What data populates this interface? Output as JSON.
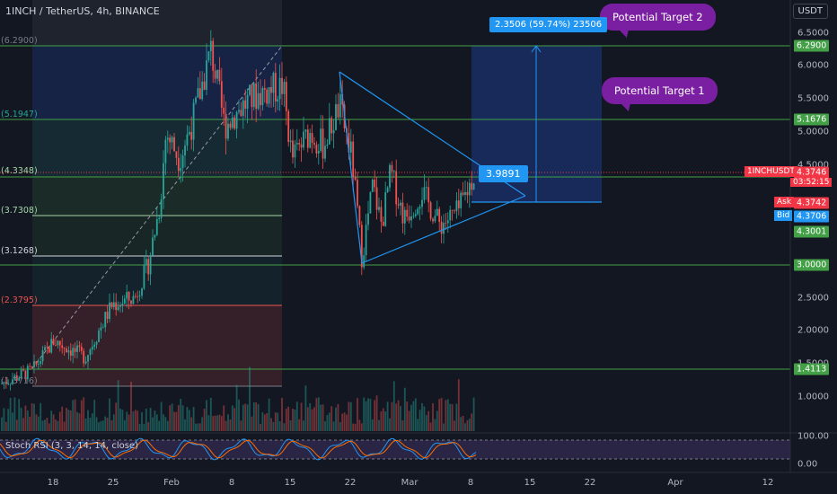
{
  "header": {
    "title": "1INCH / TetherUS, 4h, BINANCE",
    "currency": "USDT"
  },
  "price_axis": {
    "ticks": [
      "6.5000",
      "6.0000",
      "5.5000",
      "5.0000",
      "4.5000",
      "2.5000",
      "2.0000",
      "1.5000",
      "1.0000"
    ],
    "badges": [
      {
        "value": "6.2900",
        "color": "#43a047"
      },
      {
        "value": "5.1676",
        "color": "#43a047"
      },
      {
        "value": "4.3746",
        "color": "#f23645"
      },
      {
        "value": "4.3742",
        "color": "#f23645"
      },
      {
        "value": "4.3706",
        "color": "#2196f3"
      },
      {
        "value": "4.3001",
        "color": "#43a047"
      },
      {
        "value": "3.0000",
        "color": "#43a047"
      },
      {
        "value": "1.4113",
        "color": "#43a047"
      }
    ],
    "symbol_label": "1INCHUSDT",
    "countdown": "03:52:15",
    "ask_label": "Ask",
    "bid_label": "Bid"
  },
  "fib_levels": [
    {
      "label": "(6.2900)",
      "price": 6.29,
      "color": "#787b86"
    },
    {
      "label": "(5.1947)",
      "price": 5.1947,
      "color": "#26a69a"
    },
    {
      "label": "(4.3348)",
      "price": 4.3348,
      "color": "#a5d6a7"
    },
    {
      "label": "(3.7308)",
      "price": 3.7308,
      "color": "#a5d6a7"
    },
    {
      "label": "(3.1268)",
      "price": 3.1268,
      "color": "#d1d4dc"
    },
    {
      "label": "(2.3795)",
      "price": 2.3795,
      "color": "#ef5350"
    },
    {
      "label": "(1.3716)",
      "price": 1.3716,
      "color": "#787b86"
    }
  ],
  "time_axis": {
    "ticks": [
      "18",
      "25",
      "Feb",
      "8",
      "15",
      "22",
      "Mar",
      "8",
      "15",
      "22",
      "Apr",
      "12"
    ]
  },
  "annotations": {
    "target2": "Potential Target 2",
    "target1": "Potential Target 1",
    "callout": "3.9891",
    "gain": "2.3506 (59.74%) 23506"
  },
  "indicator": {
    "label": "Stoch RSI (3, 3, 14, 14, close)",
    "ticks": [
      "100.00",
      "0.00"
    ]
  },
  "colors": {
    "background": "#131722",
    "up": "#26a69a",
    "down": "#ef5350",
    "level_line": "#43a047",
    "triangle": "#2196f3",
    "bubble": "#7b1fa2"
  }
}
